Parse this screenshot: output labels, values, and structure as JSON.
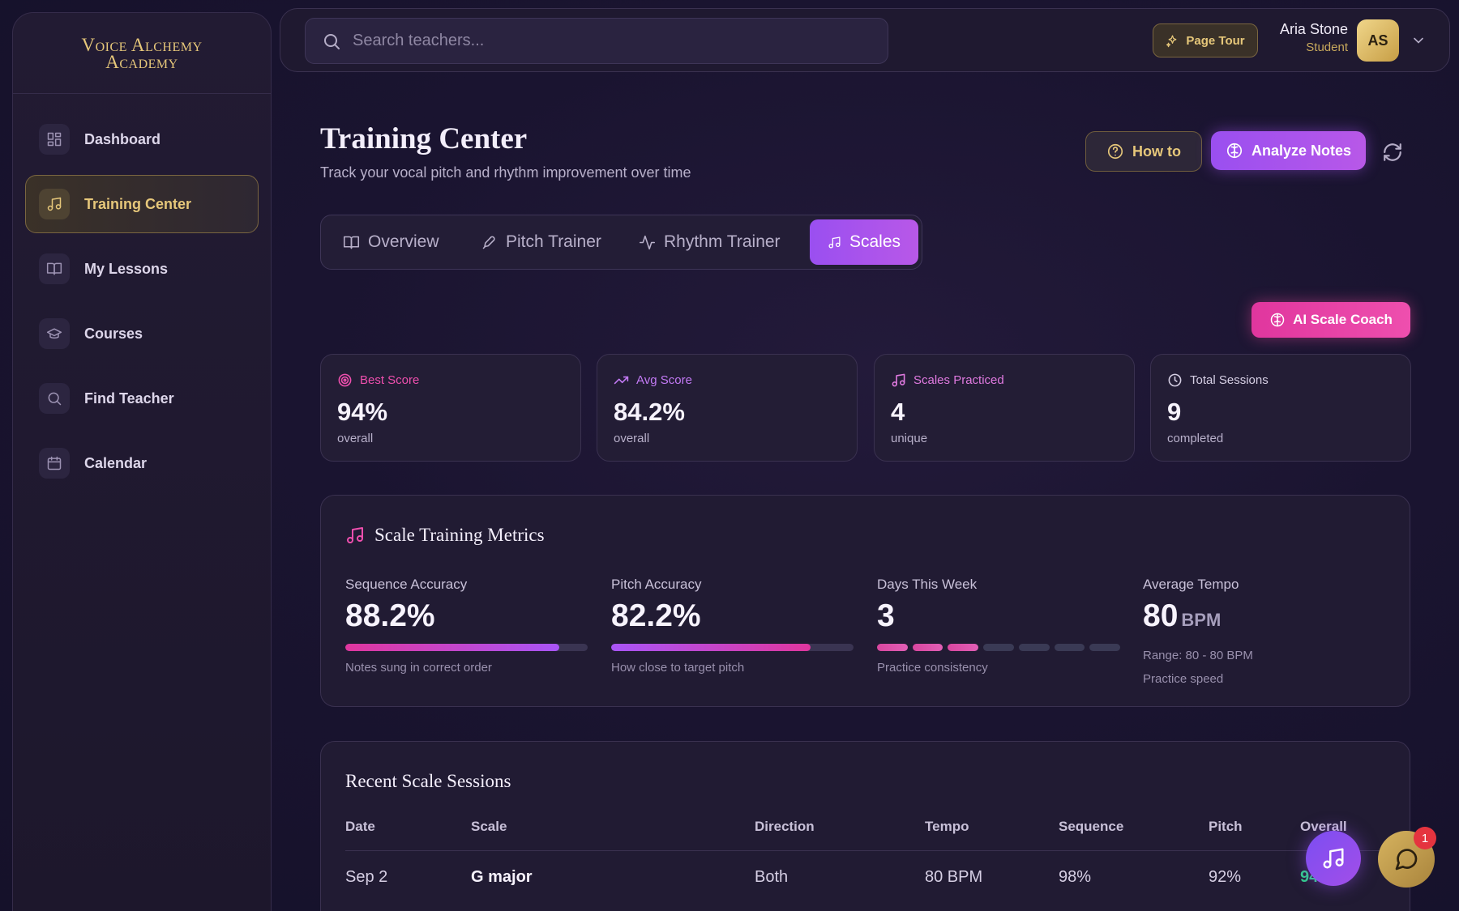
{
  "brand": {
    "line1": "Voice Alchemy",
    "line2": "Academy"
  },
  "sidebar": {
    "items": [
      {
        "label": "Dashboard"
      },
      {
        "label": "Training Center"
      },
      {
        "label": "My Lessons"
      },
      {
        "label": "Courses"
      },
      {
        "label": "Find Teacher"
      },
      {
        "label": "Calendar"
      }
    ]
  },
  "topbar": {
    "search_placeholder": "Search teachers...",
    "tour_label": "Page Tour",
    "user_name": "Aria Stone",
    "user_role": "Student",
    "avatar_initials": "AS"
  },
  "header": {
    "title": "Training Center",
    "subtitle": "Track your vocal pitch and rhythm improvement over time",
    "howto_label": "How to",
    "analyze_label": "Analyze Notes"
  },
  "tabs": [
    {
      "label": "Overview",
      "icon": "book-icon"
    },
    {
      "label": "Pitch Trainer",
      "icon": "mic-icon"
    },
    {
      "label": "Rhythm Trainer",
      "icon": "activity-icon"
    },
    {
      "label": "Scales",
      "icon": "music-icon",
      "active": true
    }
  ],
  "coach_label": "AI Scale Coach",
  "stats": [
    {
      "label": "Best Score",
      "value": "94%",
      "foot": "overall",
      "color": "#ee4fae"
    },
    {
      "label": "Avg Score",
      "value": "84.2%",
      "foot": "overall",
      "color": "#b870f0"
    },
    {
      "label": "Scales Practiced",
      "value": "4",
      "foot": "unique",
      "color": "#d86ad8"
    },
    {
      "label": "Total Sessions",
      "value": "9",
      "foot": "completed",
      "color": "#c8c0d8"
    }
  ],
  "metrics": {
    "title": "Scale Training Metrics",
    "sequence": {
      "label": "Sequence Accuracy",
      "value": "88.2%",
      "fraction": 0.882,
      "note": "Notes sung in correct order"
    },
    "pitch": {
      "label": "Pitch Accuracy",
      "value": "82.2%",
      "fraction": 0.822,
      "note": "How close to target pitch"
    },
    "days": {
      "label": "Days This Week",
      "value": "3",
      "active_days": 3,
      "total_days": 7,
      "note": "Practice consistency"
    },
    "tempo": {
      "label": "Average Tempo",
      "value": "80",
      "unit": "BPM",
      "range": "Range: 80 - 80 BPM",
      "note": "Practice speed"
    }
  },
  "sessions": {
    "title": "Recent Scale Sessions",
    "columns": [
      "Date",
      "Scale",
      "Direction",
      "Tempo",
      "Sequence",
      "Pitch",
      "Overall"
    ],
    "rows": [
      {
        "date": "Sep 2",
        "scale": "G major",
        "direction": "Both",
        "tempo": "80 BPM",
        "sequence": "98%",
        "pitch": "92%",
        "overall": "94%"
      }
    ]
  },
  "chat_badge": "1",
  "colors": {
    "accent_purple": "#a855f7",
    "accent_pink": "#ec4899",
    "gold": "#e6c77a",
    "good": "#2fd08a"
  }
}
